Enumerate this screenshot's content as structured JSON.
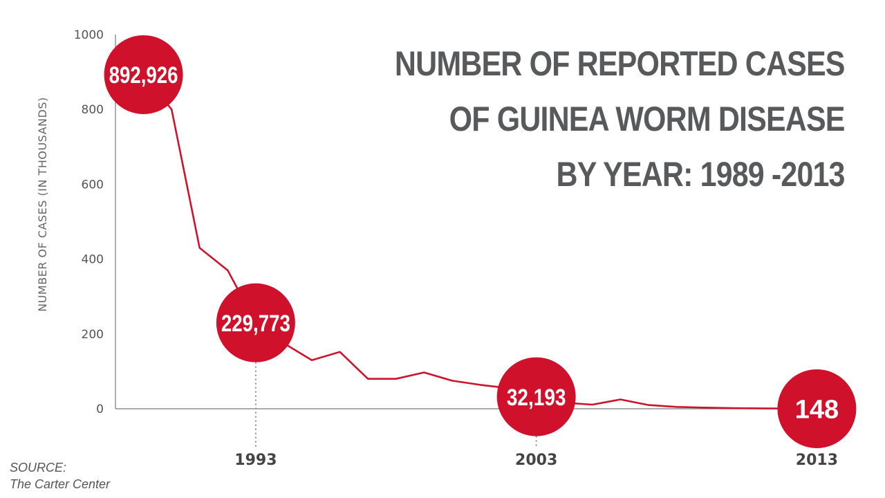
{
  "chart_data": {
    "type": "line",
    "title": [
      "NUMBER OF REPORTED CASES",
      "OF GUINEA WORM DISEASE",
      "BY YEAR: 1989 -2013"
    ],
    "ylabel": "NUMBER OF CASES (IN THOUSANDS)",
    "xlabel": "",
    "ylim": [
      0,
      1000
    ],
    "xlim": [
      1988,
      2014
    ],
    "yticks": [
      0,
      200,
      400,
      600,
      800,
      1000
    ],
    "xticks": [
      1993,
      2003,
      2013
    ],
    "grid": false,
    "line_color": "#d0112b",
    "series": [
      {
        "x": [
          1989,
          1990,
          1991,
          1992,
          1993,
          1994,
          1995,
          1996,
          1997,
          1998,
          1999,
          2000,
          2001,
          2002,
          2003,
          2004,
          2005,
          2006,
          2007,
          2008,
          2009,
          2010,
          2011,
          2012,
          2013
        ],
        "values": [
          892.9,
          800,
          430,
          370,
          229.8,
          175,
          130,
          152,
          80,
          80,
          97,
          75,
          64,
          55,
          32.2,
          16,
          11,
          25,
          10,
          5,
          3.2,
          1.8,
          1.1,
          0.5,
          0.1
        ]
      }
    ],
    "annotations": [
      {
        "x": 1989,
        "y": 892.9,
        "label": "892,926"
      },
      {
        "x": 1993,
        "y": 229.8,
        "label": "229,773"
      },
      {
        "x": 2003,
        "y": 32.2,
        "label": "32,193"
      },
      {
        "x": 2013,
        "y": 0.1,
        "label": "148"
      }
    ]
  },
  "source": {
    "label": "SOURCE:",
    "name": "The Carter Center"
  },
  "colors": {
    "accent": "#d0112b",
    "title": "#58595b"
  }
}
